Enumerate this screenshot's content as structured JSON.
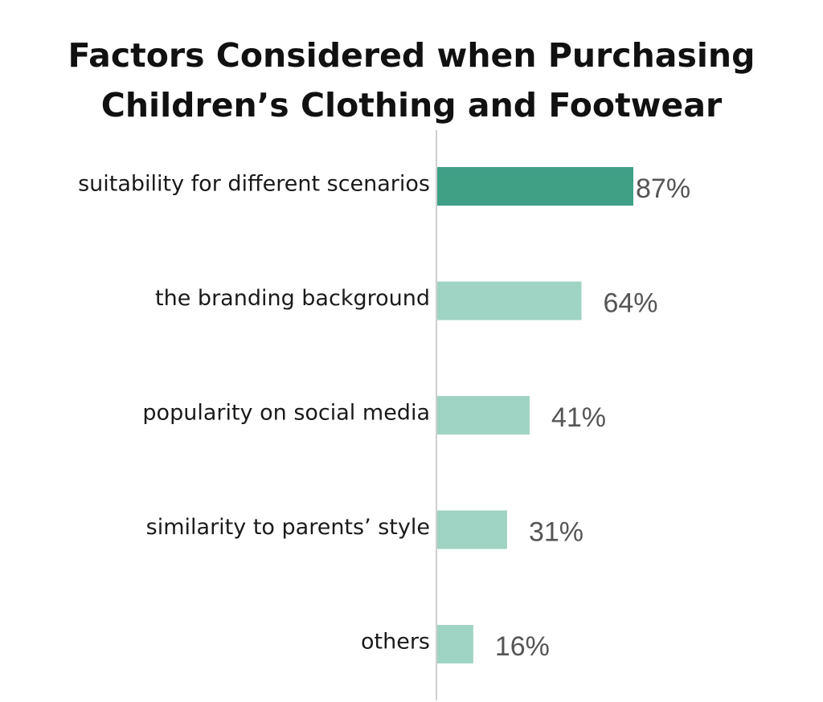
{
  "chart_data": {
    "type": "bar",
    "orientation": "horizontal",
    "title_lines": [
      "Factors Considered when Purchasing",
      "Children’s Clothing and Footwear"
    ],
    "categories": [
      "suitability for different scenarios",
      "the branding background",
      "popularity on social media",
      "similarity to parents’ style",
      "others"
    ],
    "values": [
      87,
      64,
      41,
      31,
      16
    ],
    "value_labels": [
      "87%",
      "64%",
      "41%",
      "31%",
      "16%"
    ],
    "xlim": [
      0,
      100
    ],
    "grid": false,
    "colors": {
      "highlight": "#3fa086",
      "bar": "#9fd3c3",
      "axis": "#cfcfcf",
      "value_text": "#555555"
    }
  }
}
